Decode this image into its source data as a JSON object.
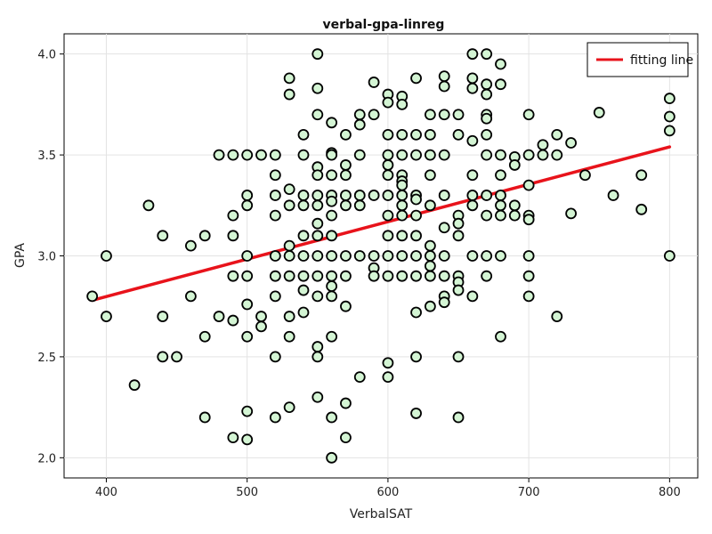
{
  "chart_data": {
    "type": "scatter",
    "title": "verbal-gpa-linreg",
    "xlabel": "VerbalSAT",
    "ylabel": "GPA",
    "xlim": [
      370,
      820
    ],
    "ylim": [
      1.9,
      4.1
    ],
    "x_ticks": [
      400,
      500,
      600,
      700,
      800
    ],
    "y_ticks": [
      2.0,
      2.5,
      3.0,
      3.5,
      4.0
    ],
    "x_tick_labels": [
      "400",
      "500",
      "600",
      "700",
      "800"
    ],
    "y_tick_labels": [
      "2.0",
      "2.5",
      "3.0",
      "3.5",
      "4.0"
    ],
    "grid": true,
    "legend_position": "top-right",
    "colors": {
      "marker_fill": "#d4f5d4",
      "marker_stroke": "#000000",
      "line": "#e8131b",
      "grid": "#e3e3e3"
    },
    "series": [
      {
        "type": "scatter",
        "points": [
          [
            390,
            2.8
          ],
          [
            400,
            3.0
          ],
          [
            400,
            2.7
          ],
          [
            420,
            2.36
          ],
          [
            430,
            3.25
          ],
          [
            440,
            3.1
          ],
          [
            440,
            2.7
          ],
          [
            440,
            2.5
          ],
          [
            450,
            2.5
          ],
          [
            460,
            3.05
          ],
          [
            460,
            2.8
          ],
          [
            470,
            3.1
          ],
          [
            470,
            2.6
          ],
          [
            470,
            2.2
          ],
          [
            480,
            3.5
          ],
          [
            480,
            2.7
          ],
          [
            490,
            3.5
          ],
          [
            490,
            3.2
          ],
          [
            490,
            3.1
          ],
          [
            490,
            2.9
          ],
          [
            490,
            2.68
          ],
          [
            490,
            2.1
          ],
          [
            500,
            3.5
          ],
          [
            500,
            3.3
          ],
          [
            500,
            3.25
          ],
          [
            500,
            3.0
          ],
          [
            500,
            2.9
          ],
          [
            500,
            2.76
          ],
          [
            500,
            2.6
          ],
          [
            500,
            2.23
          ],
          [
            500,
            2.09
          ],
          [
            510,
            3.5
          ],
          [
            510,
            2.7
          ],
          [
            510,
            2.65
          ],
          [
            520,
            3.5
          ],
          [
            520,
            3.4
          ],
          [
            520,
            3.3
          ],
          [
            520,
            3.2
          ],
          [
            520,
            3.0
          ],
          [
            520,
            2.9
          ],
          [
            520,
            2.8
          ],
          [
            520,
            2.5
          ],
          [
            520,
            2.2
          ],
          [
            530,
            3.88
          ],
          [
            530,
            3.8
          ],
          [
            530,
            3.33
          ],
          [
            530,
            3.25
          ],
          [
            530,
            3.05
          ],
          [
            530,
            3.0
          ],
          [
            530,
            2.9
          ],
          [
            530,
            2.7
          ],
          [
            530,
            2.6
          ],
          [
            530,
            2.25
          ],
          [
            540,
            3.6
          ],
          [
            540,
            3.5
          ],
          [
            540,
            3.3
          ],
          [
            540,
            3.25
          ],
          [
            540,
            3.1
          ],
          [
            540,
            3.0
          ],
          [
            540,
            2.9
          ],
          [
            540,
            2.83
          ],
          [
            540,
            2.72
          ],
          [
            550,
            4.0
          ],
          [
            550,
            3.83
          ],
          [
            550,
            3.7
          ],
          [
            550,
            3.44
          ],
          [
            550,
            3.4
          ],
          [
            550,
            3.3
          ],
          [
            550,
            3.25
          ],
          [
            550,
            3.16
          ],
          [
            550,
            3.1
          ],
          [
            550,
            3.0
          ],
          [
            550,
            2.9
          ],
          [
            550,
            2.8
          ],
          [
            550,
            2.55
          ],
          [
            550,
            2.5
          ],
          [
            550,
            2.3
          ],
          [
            560,
            3.66
          ],
          [
            560,
            3.51
          ],
          [
            560,
            3.5
          ],
          [
            560,
            3.4
          ],
          [
            560,
            3.3
          ],
          [
            560,
            3.27
          ],
          [
            560,
            3.2
          ],
          [
            560,
            3.1
          ],
          [
            560,
            3.0
          ],
          [
            560,
            2.9
          ],
          [
            560,
            2.85
          ],
          [
            560,
            2.8
          ],
          [
            560,
            2.6
          ],
          [
            560,
            2.2
          ],
          [
            560,
            2.0
          ],
          [
            570,
            3.6
          ],
          [
            570,
            3.45
          ],
          [
            570,
            3.4
          ],
          [
            570,
            3.3
          ],
          [
            570,
            3.25
          ],
          [
            570,
            3.0
          ],
          [
            570,
            2.9
          ],
          [
            570,
            2.75
          ],
          [
            570,
            2.27
          ],
          [
            570,
            2.1
          ],
          [
            580,
            3.7
          ],
          [
            580,
            3.65
          ],
          [
            580,
            3.5
          ],
          [
            580,
            3.3
          ],
          [
            580,
            3.25
          ],
          [
            580,
            3.0
          ],
          [
            580,
            2.4
          ],
          [
            590,
            3.86
          ],
          [
            590,
            3.7
          ],
          [
            590,
            3.3
          ],
          [
            590,
            3.0
          ],
          [
            590,
            2.94
          ],
          [
            590,
            2.9
          ],
          [
            600,
            3.8
          ],
          [
            600,
            3.76
          ],
          [
            600,
            3.6
          ],
          [
            600,
            3.5
          ],
          [
            600,
            3.45
          ],
          [
            600,
            3.4
          ],
          [
            600,
            3.3
          ],
          [
            600,
            3.2
          ],
          [
            600,
            3.1
          ],
          [
            600,
            3.0
          ],
          [
            600,
            2.9
          ],
          [
            600,
            2.47
          ],
          [
            600,
            2.4
          ],
          [
            610,
            3.79
          ],
          [
            610,
            3.75
          ],
          [
            610,
            3.6
          ],
          [
            610,
            3.5
          ],
          [
            610,
            3.4
          ],
          [
            610,
            3.37
          ],
          [
            610,
            3.35
          ],
          [
            610,
            3.3
          ],
          [
            610,
            3.25
          ],
          [
            610,
            3.2
          ],
          [
            610,
            3.1
          ],
          [
            610,
            3.0
          ],
          [
            610,
            2.9
          ],
          [
            620,
            3.88
          ],
          [
            620,
            3.6
          ],
          [
            620,
            3.5
          ],
          [
            620,
            3.3
          ],
          [
            620,
            3.28
          ],
          [
            620,
            3.2
          ],
          [
            620,
            3.1
          ],
          [
            620,
            3.0
          ],
          [
            620,
            2.9
          ],
          [
            620,
            2.72
          ],
          [
            620,
            2.5
          ],
          [
            620,
            2.22
          ],
          [
            630,
            3.7
          ],
          [
            630,
            3.6
          ],
          [
            630,
            3.5
          ],
          [
            630,
            3.4
          ],
          [
            630,
            3.25
          ],
          [
            630,
            3.05
          ],
          [
            630,
            3.0
          ],
          [
            630,
            2.95
          ],
          [
            630,
            2.9
          ],
          [
            630,
            2.75
          ],
          [
            640,
            3.89
          ],
          [
            640,
            3.84
          ],
          [
            640,
            3.7
          ],
          [
            640,
            3.5
          ],
          [
            640,
            3.3
          ],
          [
            640,
            3.14
          ],
          [
            640,
            3.0
          ],
          [
            640,
            2.9
          ],
          [
            640,
            2.8
          ],
          [
            640,
            2.77
          ],
          [
            650,
            3.7
          ],
          [
            650,
            3.6
          ],
          [
            650,
            3.2
          ],
          [
            650,
            3.16
          ],
          [
            650,
            3.1
          ],
          [
            650,
            2.9
          ],
          [
            650,
            2.87
          ],
          [
            650,
            2.83
          ],
          [
            650,
            2.5
          ],
          [
            650,
            2.2
          ],
          [
            660,
            4.0
          ],
          [
            660,
            3.88
          ],
          [
            660,
            3.83
          ],
          [
            660,
            3.57
          ],
          [
            660,
            3.4
          ],
          [
            660,
            3.3
          ],
          [
            660,
            3.25
          ],
          [
            660,
            3.0
          ],
          [
            660,
            2.8
          ],
          [
            670,
            4.0
          ],
          [
            670,
            3.85
          ],
          [
            670,
            3.8
          ],
          [
            670,
            3.7
          ],
          [
            670,
            3.68
          ],
          [
            670,
            3.6
          ],
          [
            670,
            3.5
          ],
          [
            670,
            3.3
          ],
          [
            670,
            3.2
          ],
          [
            670,
            3.0
          ],
          [
            670,
            2.9
          ],
          [
            680,
            3.95
          ],
          [
            680,
            3.85
          ],
          [
            680,
            3.5
          ],
          [
            680,
            3.4
          ],
          [
            680,
            3.3
          ],
          [
            680,
            3.25
          ],
          [
            680,
            3.2
          ],
          [
            680,
            3.0
          ],
          [
            680,
            2.6
          ],
          [
            690,
            3.49
          ],
          [
            690,
            3.45
          ],
          [
            690,
            3.25
          ],
          [
            690,
            3.2
          ],
          [
            700,
            3.7
          ],
          [
            700,
            3.5
          ],
          [
            700,
            3.35
          ],
          [
            700,
            3.2
          ],
          [
            700,
            3.18
          ],
          [
            700,
            3.0
          ],
          [
            700,
            2.9
          ],
          [
            700,
            2.8
          ],
          [
            710,
            3.55
          ],
          [
            710,
            3.5
          ],
          [
            720,
            3.6
          ],
          [
            720,
            3.5
          ],
          [
            720,
            2.7
          ],
          [
            730,
            3.56
          ],
          [
            730,
            3.21
          ],
          [
            740,
            3.4
          ],
          [
            750,
            3.71
          ],
          [
            760,
            3.3
          ],
          [
            780,
            3.4
          ],
          [
            780,
            3.23
          ],
          [
            800,
            3.78
          ],
          [
            800,
            3.69
          ],
          [
            800,
            3.62
          ],
          [
            800,
            3.0
          ]
        ]
      },
      {
        "type": "line",
        "name": "fitting line",
        "x": [
          390,
          800
        ],
        "y": [
          2.78,
          3.54
        ]
      }
    ]
  }
}
